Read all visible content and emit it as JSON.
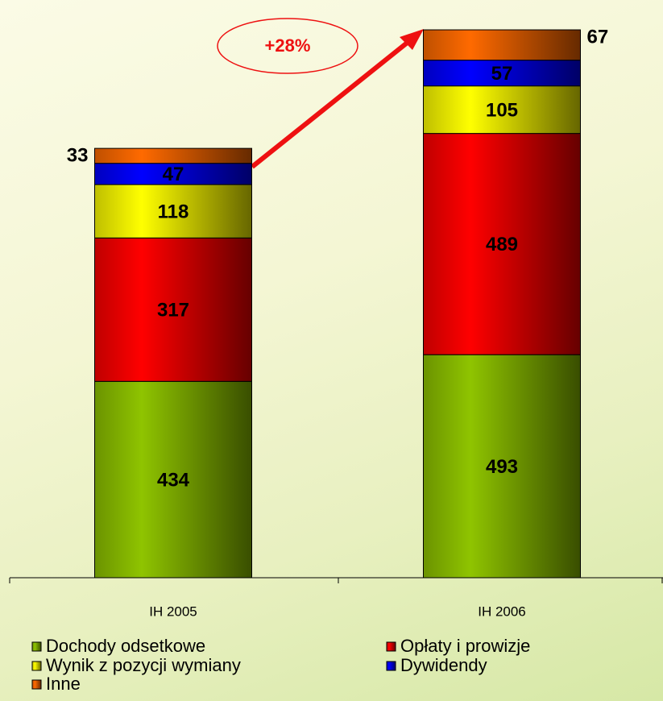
{
  "chart_data": {
    "type": "stacked_bar",
    "categories": [
      "IH 2005",
      "IH 2006"
    ],
    "series": [
      {
        "name": "Dochody odsetkowe",
        "color": "#8fc400",
        "values": [
          434,
          493
        ]
      },
      {
        "name": "Opłaty i prowizje",
        "color": "#ff0000",
        "values": [
          317,
          489
        ]
      },
      {
        "name": "Wynik z pozycji wymiany",
        "color": "#ffff00",
        "values": [
          118,
          105
        ]
      },
      {
        "name": "Dywidendy",
        "color": "#0000ff",
        "values": [
          47,
          57
        ]
      },
      {
        "name": "Inne",
        "color": "#ff6a00",
        "values": [
          33,
          67
        ]
      }
    ],
    "annotation": "+28%"
  }
}
